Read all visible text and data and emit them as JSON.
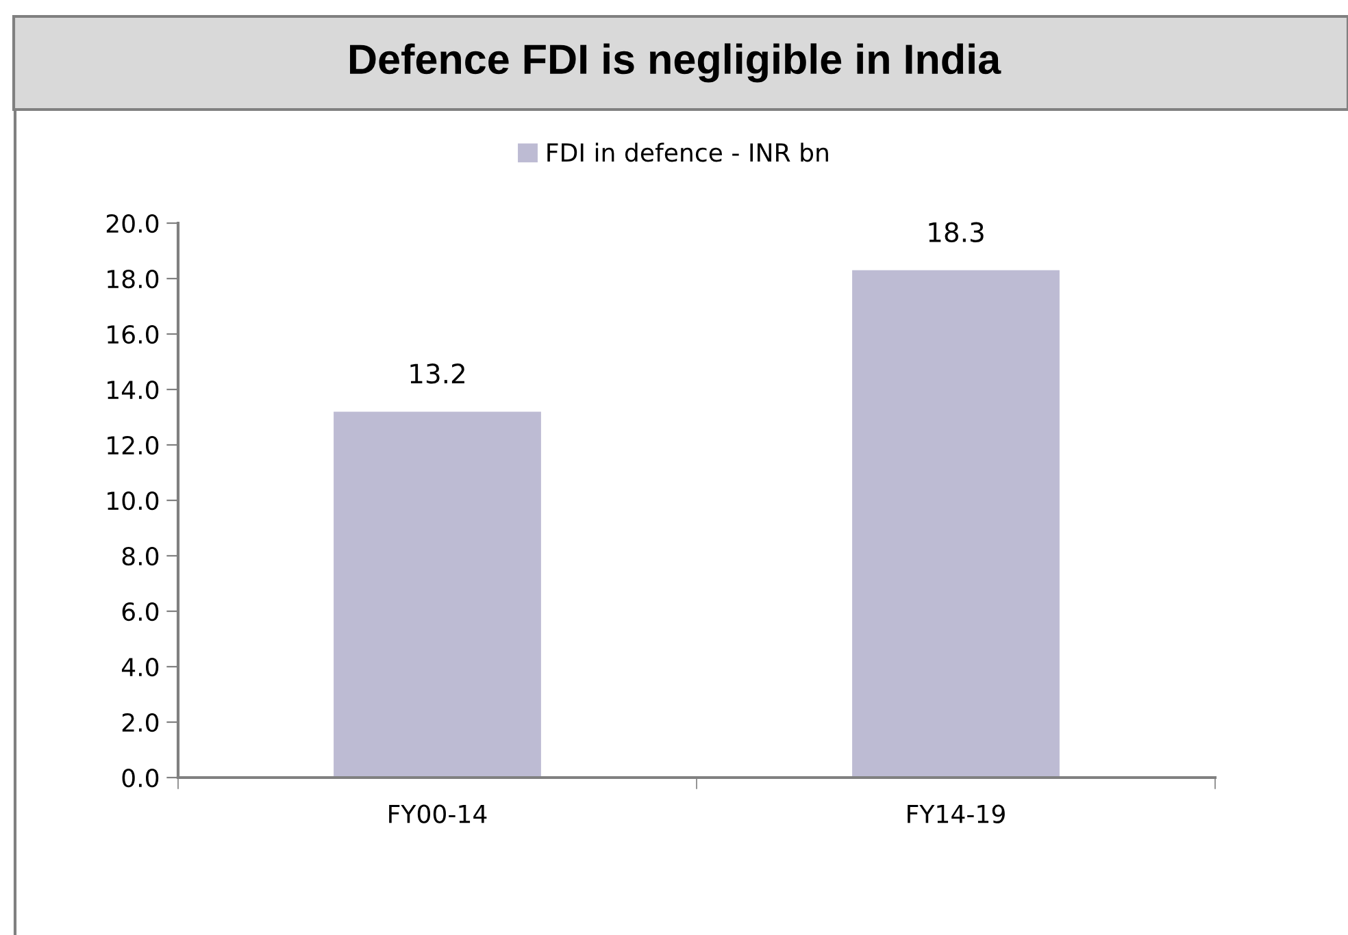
{
  "chart_data": {
    "type": "bar",
    "title": "Defence FDI is negligible in India",
    "categories": [
      "FY00-14",
      "FY14-19"
    ],
    "series": [
      {
        "name": "FDI in defence - INR bn",
        "color": "#bdbbd3",
        "values": [
          13.2,
          18.3
        ]
      }
    ],
    "ylim": [
      0,
      20
    ],
    "yticks": [
      {
        "value": 0,
        "label": "0.0"
      },
      {
        "value": 2,
        "label": "2.0"
      },
      {
        "value": 4,
        "label": "4.0"
      },
      {
        "value": 6,
        "label": "6.0"
      },
      {
        "value": 8,
        "label": "8.0"
      },
      {
        "value": 10,
        "label": "10.0"
      },
      {
        "value": 12,
        "label": "12.0"
      },
      {
        "value": 14,
        "label": "14.0"
      },
      {
        "value": 16,
        "label": "16.0"
      },
      {
        "value": 18,
        "label": "18.0"
      },
      {
        "value": 20,
        "label": "20.0"
      }
    ],
    "data_labels": true,
    "legend": "top",
    "grid": false
  }
}
